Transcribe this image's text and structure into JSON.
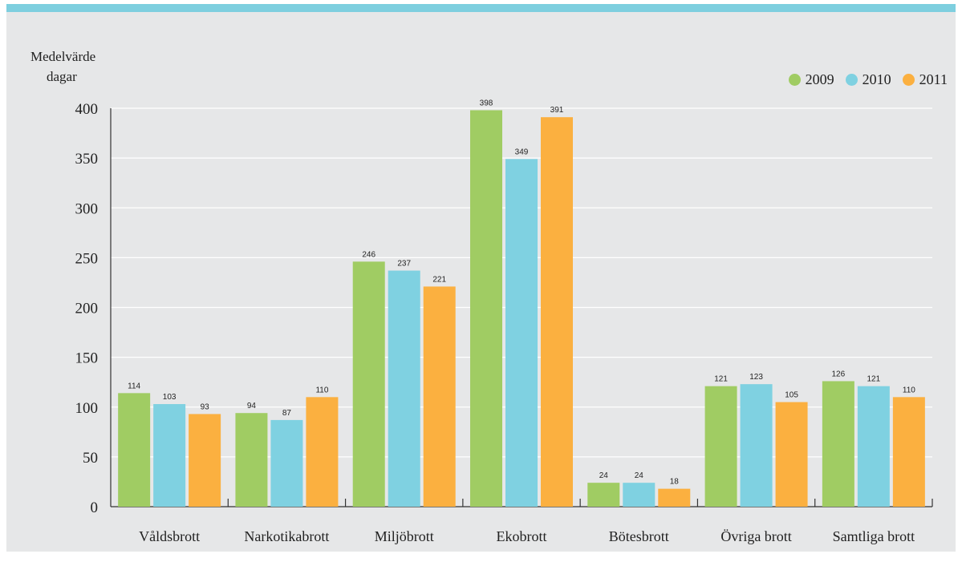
{
  "chart_data": {
    "type": "bar",
    "ylabel_lines": [
      "Medelvärde",
      "dagar"
    ],
    "categories": [
      "Våldsbrott",
      "Narkotikabrott",
      "Miljöbrott",
      "Ekobrott",
      "Bötesbrott",
      "Övriga brott",
      "Samtliga brott"
    ],
    "series": [
      {
        "name": "2009",
        "color": "#a0cc63",
        "values": [
          114,
          94,
          246,
          398,
          24,
          121,
          126
        ]
      },
      {
        "name": "2010",
        "color": "#7fd1e1",
        "values": [
          103,
          87,
          237,
          349,
          24,
          123,
          121
        ]
      },
      {
        "name": "2011",
        "color": "#fbb040",
        "values": [
          93,
          110,
          221,
          391,
          18,
          105,
          110
        ]
      }
    ],
    "yticks": [
      0,
      50,
      100,
      150,
      200,
      250,
      300,
      350,
      400
    ],
    "ylim": [
      0,
      400
    ],
    "grid": true,
    "legend_position": "top-right"
  }
}
